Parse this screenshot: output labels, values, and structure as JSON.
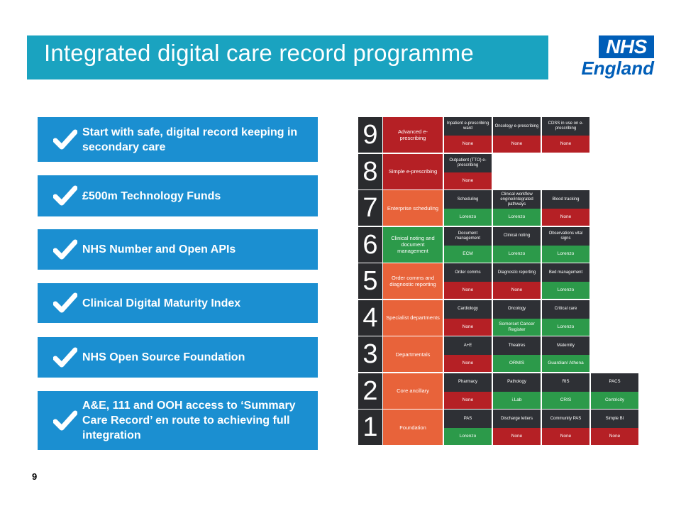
{
  "header": {
    "title": "Integrated digital care record programme"
  },
  "logo": {
    "nhs": "NHS",
    "region": "England",
    "color": "#005eb8"
  },
  "checklist": [
    {
      "text": "Start with safe, digital record keeping in secondary care"
    },
    {
      "text": "£500m Technology Funds"
    },
    {
      "text": "NHS Number and Open APIs"
    },
    {
      "text": "Clinical Digital Maturity Index"
    },
    {
      "text": "NHS Open Source Foundation"
    },
    {
      "text": "A&E, 111 and OOH access to ‘Summary Care Record’ en route to achieving full integration"
    }
  ],
  "footer": {
    "page_number": "9"
  },
  "colors": {
    "title_bar": "#1aa3c0",
    "checklist": "#1b8fd1",
    "none": "#b52025",
    "implemented": "#2c9a4a",
    "level_name": "#e8633a"
  },
  "maturity_levels": [
    {
      "level": "9",
      "name": "Advanced e-prescribing",
      "name_color": "dark-red",
      "capabilities": [
        {
          "name": "Inpatient e-prescribing ward",
          "status": "None",
          "state": "none"
        },
        {
          "name": "Oncology e-prescribing",
          "status": "None",
          "state": "none"
        },
        {
          "name": "CDSS in use on e-prescribing",
          "status": "None",
          "state": "none"
        }
      ]
    },
    {
      "level": "8",
      "name": "Simple e-prescribing",
      "name_color": "dark-red",
      "capabilities": [
        {
          "name": "Outpatient (TTO) e-prescribing",
          "status": "None",
          "state": "none"
        }
      ]
    },
    {
      "level": "7",
      "name": "Enterprise scheduling",
      "name_color": "orange",
      "capabilities": [
        {
          "name": "Scheduling",
          "status": "Lorenzo",
          "state": "done"
        },
        {
          "name": "Clinical workflow engine/integrated pathways",
          "status": "Lorenzo",
          "state": "done"
        },
        {
          "name": "Blood tracking",
          "status": "None",
          "state": "none"
        }
      ]
    },
    {
      "level": "6",
      "name": "Clinical noting and document management",
      "name_color": "green",
      "capabilities": [
        {
          "name": "Document management",
          "status": "ECM",
          "state": "done"
        },
        {
          "name": "Clinical noting",
          "status": "Lorenzo",
          "state": "done"
        },
        {
          "name": "Observations vital signs",
          "status": "Lorenzo",
          "state": "done"
        }
      ]
    },
    {
      "level": "5",
      "name": "Order comms and diagnostic reporting",
      "name_color": "orange",
      "capabilities": [
        {
          "name": "Order comms",
          "status": "None",
          "state": "none"
        },
        {
          "name": "Diagnostic reporting",
          "status": "None",
          "state": "none"
        },
        {
          "name": "Bed management",
          "status": "Lorenzo",
          "state": "done"
        }
      ]
    },
    {
      "level": "4",
      "name": "Specialist departments",
      "name_color": "orange",
      "capabilities": [
        {
          "name": "Cardiology",
          "status": "None",
          "state": "none"
        },
        {
          "name": "Oncology",
          "status": "Somerset Cancer Register",
          "state": "done"
        },
        {
          "name": "Critical care",
          "status": "Lorenzo",
          "state": "done"
        }
      ]
    },
    {
      "level": "3",
      "name": "Departmentals",
      "name_color": "orange",
      "capabilities": [
        {
          "name": "A+E",
          "status": "None",
          "state": "none"
        },
        {
          "name": "Theatres",
          "status": "ORMIS",
          "state": "done"
        },
        {
          "name": "Maternity",
          "status": "Guardian/ Athena",
          "state": "done"
        }
      ]
    },
    {
      "level": "2",
      "name": "Core ancillary",
      "name_color": "orange",
      "capabilities": [
        {
          "name": "Pharmacy",
          "status": "None",
          "state": "none"
        },
        {
          "name": "Pathology",
          "status": "i.Lab",
          "state": "done"
        },
        {
          "name": "RIS",
          "status": "CRIS",
          "state": "done"
        },
        {
          "name": "PACS",
          "status": "Centricity",
          "state": "done"
        }
      ]
    },
    {
      "level": "1",
      "name": "Foundation",
      "name_color": "orange",
      "capabilities": [
        {
          "name": "PAS",
          "status": "Lorenzo",
          "state": "done"
        },
        {
          "name": "Discharge letters",
          "status": "None",
          "state": "none"
        },
        {
          "name": "Community PAS",
          "status": "None",
          "state": "none"
        },
        {
          "name": "Simple BI",
          "status": "None",
          "state": "none"
        }
      ]
    }
  ]
}
